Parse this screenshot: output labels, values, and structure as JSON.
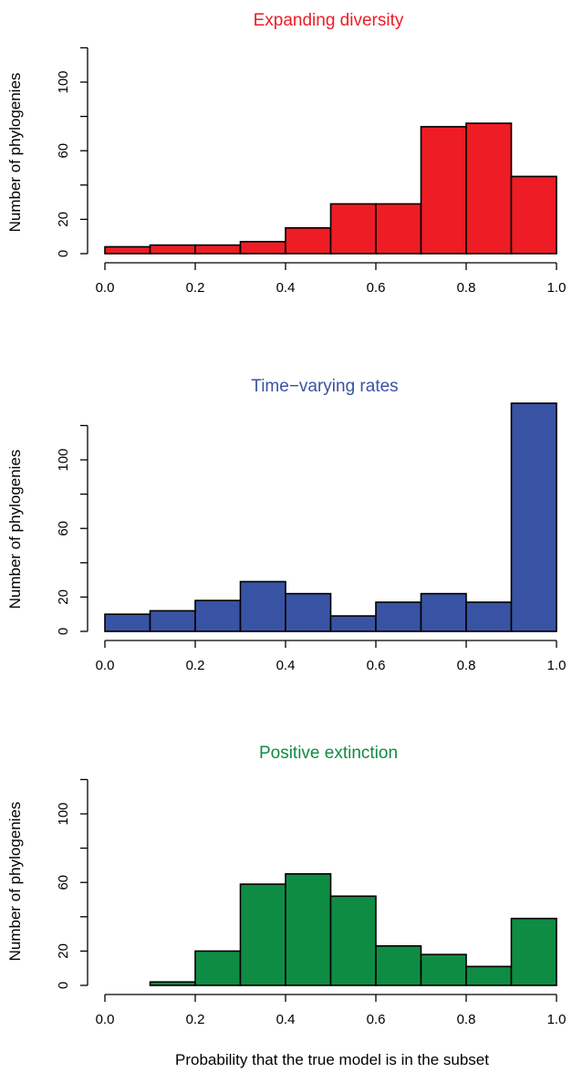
{
  "chart_data": [
    {
      "type": "bar",
      "title": "Expanding diversity",
      "color": "#ee1c24",
      "ylabel": "Number of phylogenies",
      "xlabel": "",
      "xlim": [
        0,
        1
      ],
      "ylim": [
        0,
        120
      ],
      "bin_edges": [
        0.0,
        0.1,
        0.2,
        0.3,
        0.4,
        0.5,
        0.6,
        0.7,
        0.8,
        0.9,
        1.0
      ],
      "values": [
        4,
        5,
        5,
        7,
        15,
        29,
        29,
        74,
        76,
        45
      ],
      "x_ticks": [
        "0.0",
        "0.2",
        "0.4",
        "0.6",
        "0.8",
        "1.0"
      ],
      "y_ticks": [
        "0",
        "20",
        "60",
        "100"
      ]
    },
    {
      "type": "bar",
      "title": "Time−varying rates",
      "color": "#3953a4",
      "ylabel": "Number of phylogenies",
      "xlabel": "",
      "xlim": [
        0,
        1
      ],
      "ylim": [
        0,
        120
      ],
      "bin_edges": [
        0.0,
        0.1,
        0.2,
        0.3,
        0.4,
        0.5,
        0.6,
        0.7,
        0.8,
        0.9,
        1.0
      ],
      "values": [
        10,
        12,
        18,
        29,
        22,
        9,
        17,
        22,
        17,
        133
      ],
      "x_ticks": [
        "0.0",
        "0.2",
        "0.4",
        "0.6",
        "0.8",
        "1.0"
      ],
      "y_ticks": [
        "0",
        "20",
        "60",
        "100"
      ]
    },
    {
      "type": "bar",
      "title": "Positive extinction",
      "color": "#0f8c43",
      "ylabel": "Number of phylogenies",
      "xlabel": "Probability that the true model is in the subset",
      "xlim": [
        0,
        1
      ],
      "ylim": [
        0,
        120
      ],
      "bin_edges": [
        0.0,
        0.1,
        0.2,
        0.3,
        0.4,
        0.5,
        0.6,
        0.7,
        0.8,
        0.9,
        1.0
      ],
      "values": [
        0,
        2,
        20,
        59,
        65,
        52,
        23,
        18,
        11,
        39
      ],
      "x_ticks": [
        "0.0",
        "0.2",
        "0.4",
        "0.6",
        "0.8",
        "1.0"
      ],
      "y_ticks": [
        "0",
        "20",
        "60",
        "100"
      ]
    }
  ]
}
